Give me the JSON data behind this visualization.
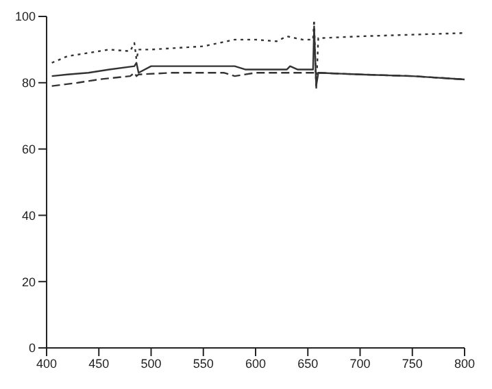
{
  "chart_data": {
    "type": "line",
    "xlim": [
      400,
      800
    ],
    "ylim": [
      0,
      100
    ],
    "xticks": [
      400,
      450,
      500,
      550,
      600,
      650,
      700,
      750,
      800
    ],
    "yticks": [
      0,
      20,
      40,
      60,
      80,
      100
    ],
    "marker": "none",
    "series": [
      {
        "color": "#333333",
        "line_style": "dotted",
        "x": [
          405,
          420,
          440,
          460,
          480,
          484,
          486,
          488,
          500,
          550,
          580,
          600,
          620,
          630,
          645,
          655,
          656,
          658,
          660,
          665,
          700,
          750,
          800
        ],
        "values": [
          86,
          88,
          89,
          90,
          89.5,
          92,
          87,
          90,
          90,
          91,
          93,
          93,
          92.5,
          94,
          93,
          93,
          99,
          78,
          93.5,
          93.5,
          94,
          94.5,
          95
        ]
      },
      {
        "color": "#333333",
        "line_style": "solid",
        "x": [
          405,
          420,
          440,
          460,
          484,
          486,
          488,
          500,
          580,
          590,
          620,
          630,
          633,
          640,
          655,
          656,
          658,
          660,
          700,
          750,
          800
        ],
        "values": [
          82,
          82.5,
          83,
          84,
          85,
          86,
          83,
          85,
          85,
          84,
          84,
          84,
          85,
          84,
          84,
          97,
          79,
          83,
          82.5,
          82,
          81
        ]
      },
      {
        "color": "#333333",
        "line_style": "dashed",
        "x": [
          405,
          430,
          450,
          480,
          484,
          486,
          488,
          520,
          570,
          580,
          600,
          650,
          660,
          700,
          750,
          800
        ],
        "values": [
          79,
          80,
          81,
          82,
          83,
          82,
          82.5,
          83,
          83,
          82,
          83,
          83,
          83,
          82.5,
          82,
          81
        ]
      }
    ]
  }
}
